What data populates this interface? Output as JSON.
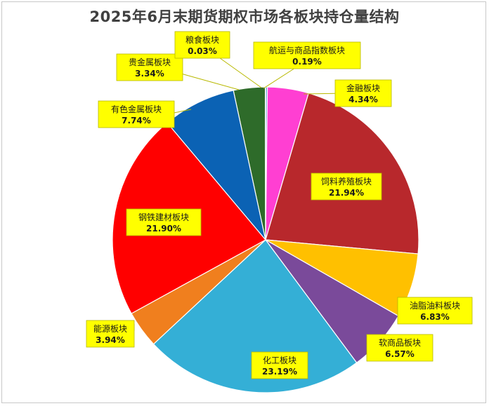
{
  "chart_data": {
    "type": "pie",
    "title": "2025年6月末期货期权市场各板块持仓量结构",
    "slices": [
      {
        "name": "航运与商品指数板块",
        "value": 0.19,
        "value_label": "0.19%",
        "color": "#5b9bd5"
      },
      {
        "name": "金融板块",
        "value": 4.34,
        "value_label": "4.34%",
        "color": "#ff3fd2"
      },
      {
        "name": "饲料养殖板块",
        "value": 21.94,
        "value_label": "21.94%",
        "color": "#b8282c"
      },
      {
        "name": "油脂油料板块",
        "value": 6.83,
        "value_label": "6.83%",
        "color": "#ffc000"
      },
      {
        "name": "软商品板块",
        "value": 6.57,
        "value_label": "6.57%",
        "color": "#7a4a9a"
      },
      {
        "name": "化工板块",
        "value": 23.19,
        "value_label": "23.19%",
        "color": "#34afd6"
      },
      {
        "name": "能源板块",
        "value": 3.94,
        "value_label": "3.94%",
        "color": "#f07f1e"
      },
      {
        "name": "钢铁建材板块",
        "value": 21.9,
        "value_label": "21.90%",
        "color": "#ff0000"
      },
      {
        "name": "有色金属板块",
        "value": 7.74,
        "value_label": "7.74%",
        "color": "#0b62b4"
      },
      {
        "name": "贵金属板块",
        "value": 3.34,
        "value_label": "3.34%",
        "color": "#2e6b2a"
      },
      {
        "name": "粮食板块",
        "value": 0.03,
        "value_label": "0.03%",
        "color": "#000000"
      }
    ],
    "label_style": {
      "background": "#ffff00",
      "border": "#b8b800"
    },
    "legend": "none"
  }
}
